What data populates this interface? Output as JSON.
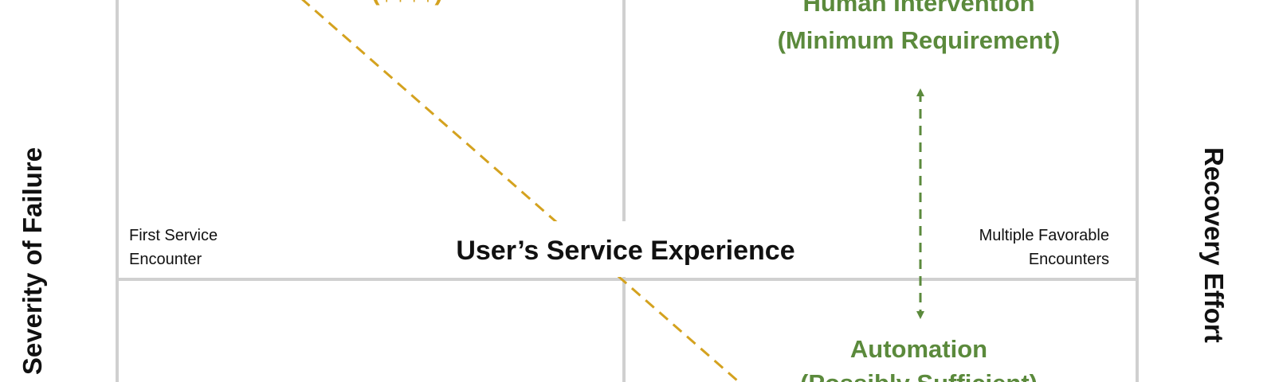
{
  "quadrant": {
    "top_left_cost": "($$$$)",
    "top_right": {
      "title": "Human Intervention",
      "subtitle": "(Minimum Requirement)"
    },
    "bottom_right": {
      "title": "Automation",
      "subtitle": "(Possibly Sufficient)"
    },
    "x_axis": {
      "label": "User’s Service Experience",
      "left": [
        "First Service",
        "Encounter"
      ],
      "right": [
        "Multiple Favorable",
        "Encounters"
      ]
    },
    "left_axis": "Severity of Failure",
    "right_axis": "Recovery Effort"
  }
}
